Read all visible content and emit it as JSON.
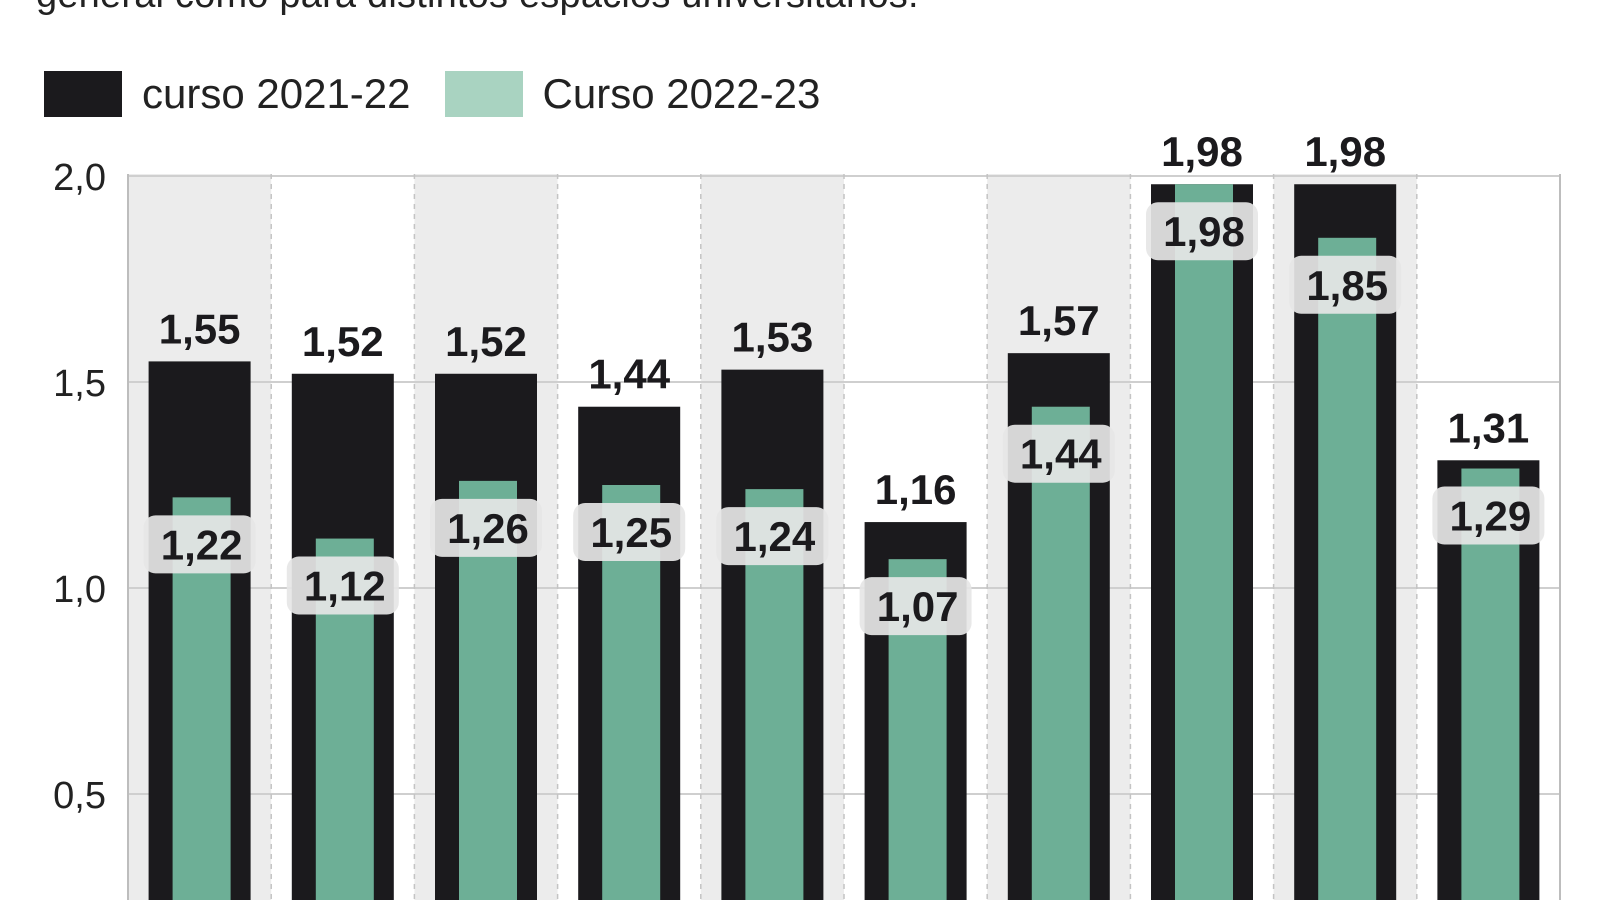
{
  "subtitle": "general como para distintos espacios universitarios.",
  "chart_data": {
    "type": "bar",
    "title": "",
    "xlabel": "",
    "ylabel": "",
    "ylim": [
      0,
      2.0
    ],
    "yticks": [
      "2,0",
      "1,5",
      "1,0",
      "0,5"
    ],
    "ytick_values": [
      2.0,
      1.5,
      1.0,
      0.5
    ],
    "grid": true,
    "legend_position": "top-left",
    "categories": [
      "",
      "",
      "",
      "",
      "",
      "",
      "",
      "",
      "",
      ""
    ],
    "series": [
      {
        "name": "curso 2021-22",
        "color": "#1b1a1d",
        "values": [
          1.55,
          1.52,
          1.52,
          1.44,
          1.53,
          1.16,
          1.57,
          1.98,
          1.98,
          1.31
        ],
        "labels": [
          "1,55",
          "1,52",
          "1,52",
          "1,44",
          "1,53",
          "1,16",
          "1,57",
          "1,98",
          "1,98",
          "1,31"
        ]
      },
      {
        "name": "Curso 2022-23",
        "color": "#6daf96",
        "values": [
          1.22,
          1.12,
          1.26,
          1.25,
          1.24,
          1.07,
          1.44,
          1.98,
          1.85,
          1.29
        ],
        "labels": [
          "1,22",
          "1,12",
          "1,26",
          "1,25",
          "1,24",
          "1,07",
          "1,44",
          "1,98",
          "1,85",
          "1,29"
        ]
      }
    ]
  },
  "legend": {
    "swatch_colors": [
      "#1b1a1d",
      "#a9d3c1"
    ]
  }
}
